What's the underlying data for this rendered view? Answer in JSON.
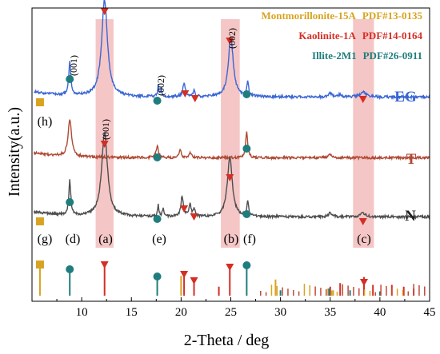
{
  "chart_data": {
    "type": "line",
    "title": "",
    "xlabel": "2-Theta / deg",
    "ylabel": "Intensity(a.u.)",
    "xlim": [
      5,
      45
    ],
    "x_ticks": [
      "10",
      "15",
      "20",
      "25",
      "30",
      "35",
      "40",
      "45"
    ],
    "grid": false,
    "legend_entries": [
      {
        "name": "Montmorillonite-15A",
        "pdf": "PDF#13-0135",
        "color": "#d8a320"
      },
      {
        "name": "Kaolinite-1A",
        "pdf": "PDF#14-0164",
        "color": "#d42e25"
      },
      {
        "name": "Illite-2M1",
        "pdf": "PDF#26-0911",
        "color": "#1f7d7d"
      }
    ],
    "series": [
      {
        "name": "EG",
        "color": "#3a66d4",
        "baseline": 0.2,
        "peaks": [
          [
            8.8,
            0.55,
            0.12
          ],
          [
            12.3,
            1.55,
            0.35
          ],
          [
            17.7,
            0.18,
            0.08
          ],
          [
            18.0,
            0.12,
            0.07
          ],
          [
            20.3,
            0.22,
            0.15
          ],
          [
            21.3,
            0.1,
            0.1
          ],
          [
            25.0,
            0.95,
            0.3
          ],
          [
            26.7,
            0.25,
            0.1
          ],
          [
            35.0,
            0.06,
            0.2
          ],
          [
            36.0,
            0.04,
            0.2
          ],
          [
            38.3,
            0.08,
            0.35
          ]
        ]
      },
      {
        "name": "T",
        "color": "#b04a35",
        "baseline": 0.2,
        "peaks": [
          [
            8.8,
            0.6,
            0.2
          ],
          [
            17.6,
            0.18,
            0.15
          ],
          [
            19.9,
            0.12,
            0.12
          ],
          [
            20.9,
            0.08,
            0.15
          ],
          [
            26.6,
            0.42,
            0.12
          ],
          [
            35.0,
            0.05,
            0.2
          ]
        ]
      },
      {
        "name": "N",
        "color": "#4d4d4d",
        "baseline": 0.2,
        "peaks": [
          [
            8.8,
            0.55,
            0.12
          ],
          [
            12.3,
            1.35,
            0.35
          ],
          [
            17.7,
            0.18,
            0.08
          ],
          [
            18.2,
            0.12,
            0.1
          ],
          [
            20.1,
            0.32,
            0.15
          ],
          [
            20.9,
            0.2,
            0.12
          ],
          [
            21.3,
            0.12,
            0.12
          ],
          [
            24.9,
            0.95,
            0.3
          ],
          [
            26.7,
            0.25,
            0.1
          ],
          [
            35.0,
            0.07,
            0.2
          ],
          [
            38.3,
            0.06,
            0.35
          ]
        ]
      }
    ],
    "reference_lines": {
      "montmorillonite": [
        [
          5.8,
          0.95
        ],
        [
          20.0,
          0.55
        ],
        [
          29.5,
          0.45
        ],
        [
          34.8,
          0.2
        ],
        [
          35.3,
          0.15
        ]
      ],
      "kaolinite": [
        [
          12.3,
          0.85
        ],
        [
          20.3,
          0.55
        ],
        [
          21.3,
          0.42
        ],
        [
          23.8,
          0.25
        ],
        [
          24.9,
          0.78
        ],
        [
          35.0,
          0.25
        ],
        [
          36.0,
          0.35
        ],
        [
          38.4,
          0.52
        ],
        [
          39.3,
          0.3
        ],
        [
          41.2,
          0.3
        ],
        [
          42.4,
          0.25
        ],
        [
          43.4,
          0.2
        ]
      ],
      "illite": [
        [
          8.8,
          0.75
        ],
        [
          17.6,
          0.5
        ],
        [
          26.6,
          0.9
        ],
        [
          30.0,
          0.15
        ],
        [
          34.9,
          0.2
        ],
        [
          37.0,
          0.15
        ],
        [
          40.0,
          0.12
        ]
      ]
    },
    "highlight_bands": [
      [
        11.4,
        13.2
      ],
      [
        24.0,
        25.9
      ],
      [
        37.3,
        39.4
      ]
    ],
    "annotations": {
      "miller_001_left": "(001)",
      "miller_002_mid": "(002)",
      "miller_002_right": "(002)",
      "miller_001_n": "(001)",
      "label_a": "(a)",
      "label_b": "(b)",
      "label_c": "(c)",
      "label_d": "(d)",
      "label_e": "(e)",
      "label_f": "(f)",
      "label_g": "(g)",
      "label_h": "(h)"
    }
  }
}
